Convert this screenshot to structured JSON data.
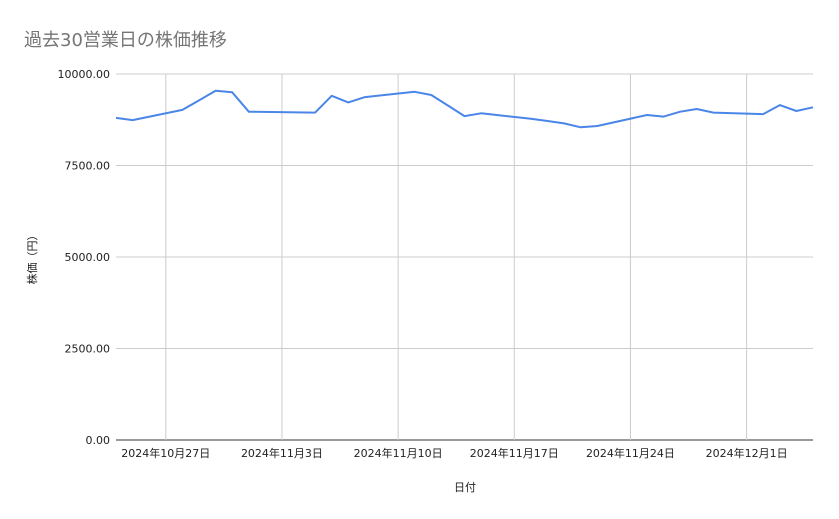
{
  "chart_data": {
    "type": "line",
    "title": "過去30営業日の株価推移",
    "xlabel": "日付",
    "ylabel": "株価（円）",
    "ylim": [
      0,
      10000
    ],
    "xlim": [
      "2024-10-24",
      "2024-12-05"
    ],
    "grid": true,
    "line_color": "#4a86e8",
    "y_ticks": [
      "0.00",
      "2500.00",
      "5000.00",
      "7500.00",
      "10000.00"
    ],
    "x_ticks": [
      {
        "date": "2024-10-27",
        "label": "2024年10月27日"
      },
      {
        "date": "2024-11-03",
        "label": "2024年11月3日"
      },
      {
        "date": "2024-11-10",
        "label": "2024年11月10日"
      },
      {
        "date": "2024-11-17",
        "label": "2024年11月17日"
      },
      {
        "date": "2024-11-24",
        "label": "2024年11月24日"
      },
      {
        "date": "2024-12-01",
        "label": "2024年12月1日"
      }
    ],
    "x": [
      "2024-10-24",
      "2024-10-25",
      "2024-10-28",
      "2024-10-29",
      "2024-10-30",
      "2024-10-31",
      "2024-11-01",
      "2024-11-05",
      "2024-11-06",
      "2024-11-07",
      "2024-11-08",
      "2024-11-11",
      "2024-11-12",
      "2024-11-13",
      "2024-11-14",
      "2024-11-15",
      "2024-11-18",
      "2024-11-19",
      "2024-11-20",
      "2024-11-21",
      "2024-11-22",
      "2024-11-25",
      "2024-11-26",
      "2024-11-27",
      "2024-11-28",
      "2024-11-29",
      "2024-12-02",
      "2024-12-03",
      "2024-12-04",
      "2024-12-05"
    ],
    "values": [
      8800,
      8740,
      9020,
      9280,
      9540,
      9500,
      8970,
      8945,
      9405,
      9225,
      9370,
      9515,
      9425,
      9140,
      8850,
      8925,
      8780,
      8715,
      8650,
      8545,
      8580,
      8880,
      8835,
      8970,
      9045,
      8945,
      8905,
      9150,
      8990,
      9090
    ]
  }
}
